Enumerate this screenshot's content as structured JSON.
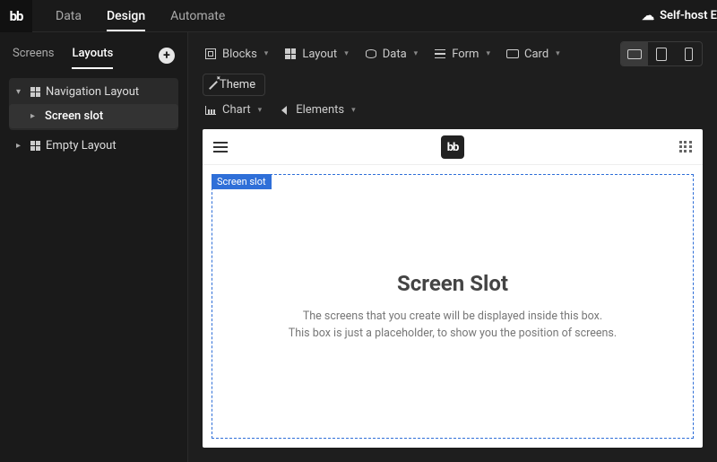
{
  "brand": {
    "logo_text": "bb"
  },
  "top_tabs": {
    "items": [
      {
        "label": "Data",
        "active": false
      },
      {
        "label": "Design",
        "active": true
      },
      {
        "label": "Automate",
        "active": false
      }
    ]
  },
  "top_right": {
    "self_host_label": "Self-host E"
  },
  "left_panel": {
    "tabs": [
      {
        "label": "Screens",
        "active": false
      },
      {
        "label": "Layouts",
        "active": true
      }
    ],
    "tree": [
      {
        "label": "Navigation Layout",
        "expanded": true,
        "children": [
          {
            "label": "Screen slot",
            "selected": true
          }
        ]
      },
      {
        "label": "Empty Layout",
        "expanded": false,
        "children": []
      }
    ]
  },
  "toolbar": {
    "row1": [
      {
        "name": "blocks",
        "label": "Blocks"
      },
      {
        "name": "layout",
        "label": "Layout"
      },
      {
        "name": "data",
        "label": "Data"
      },
      {
        "name": "form",
        "label": "Form"
      },
      {
        "name": "card",
        "label": "Card"
      }
    ],
    "row2": [
      {
        "name": "chart",
        "label": "Chart"
      },
      {
        "name": "elements",
        "label": "Elements"
      }
    ],
    "devices": [
      {
        "name": "desktop",
        "active": true
      },
      {
        "name": "tablet",
        "active": false
      },
      {
        "name": "mobile",
        "active": false
      }
    ],
    "theme_label": "Theme"
  },
  "canvas": {
    "app_logo": "bb",
    "slot_tag": "Screen slot",
    "slot_title": "Screen Slot",
    "slot_desc_1": "The screens that you create will be displayed inside this box.",
    "slot_desc_2": "This box is just a placeholder, to show you the position of screens.",
    "colors": {
      "selection_blue": "#2f6fd8",
      "canvas_bg": "#ffffff",
      "app_bg": "#1a1a1a"
    }
  }
}
